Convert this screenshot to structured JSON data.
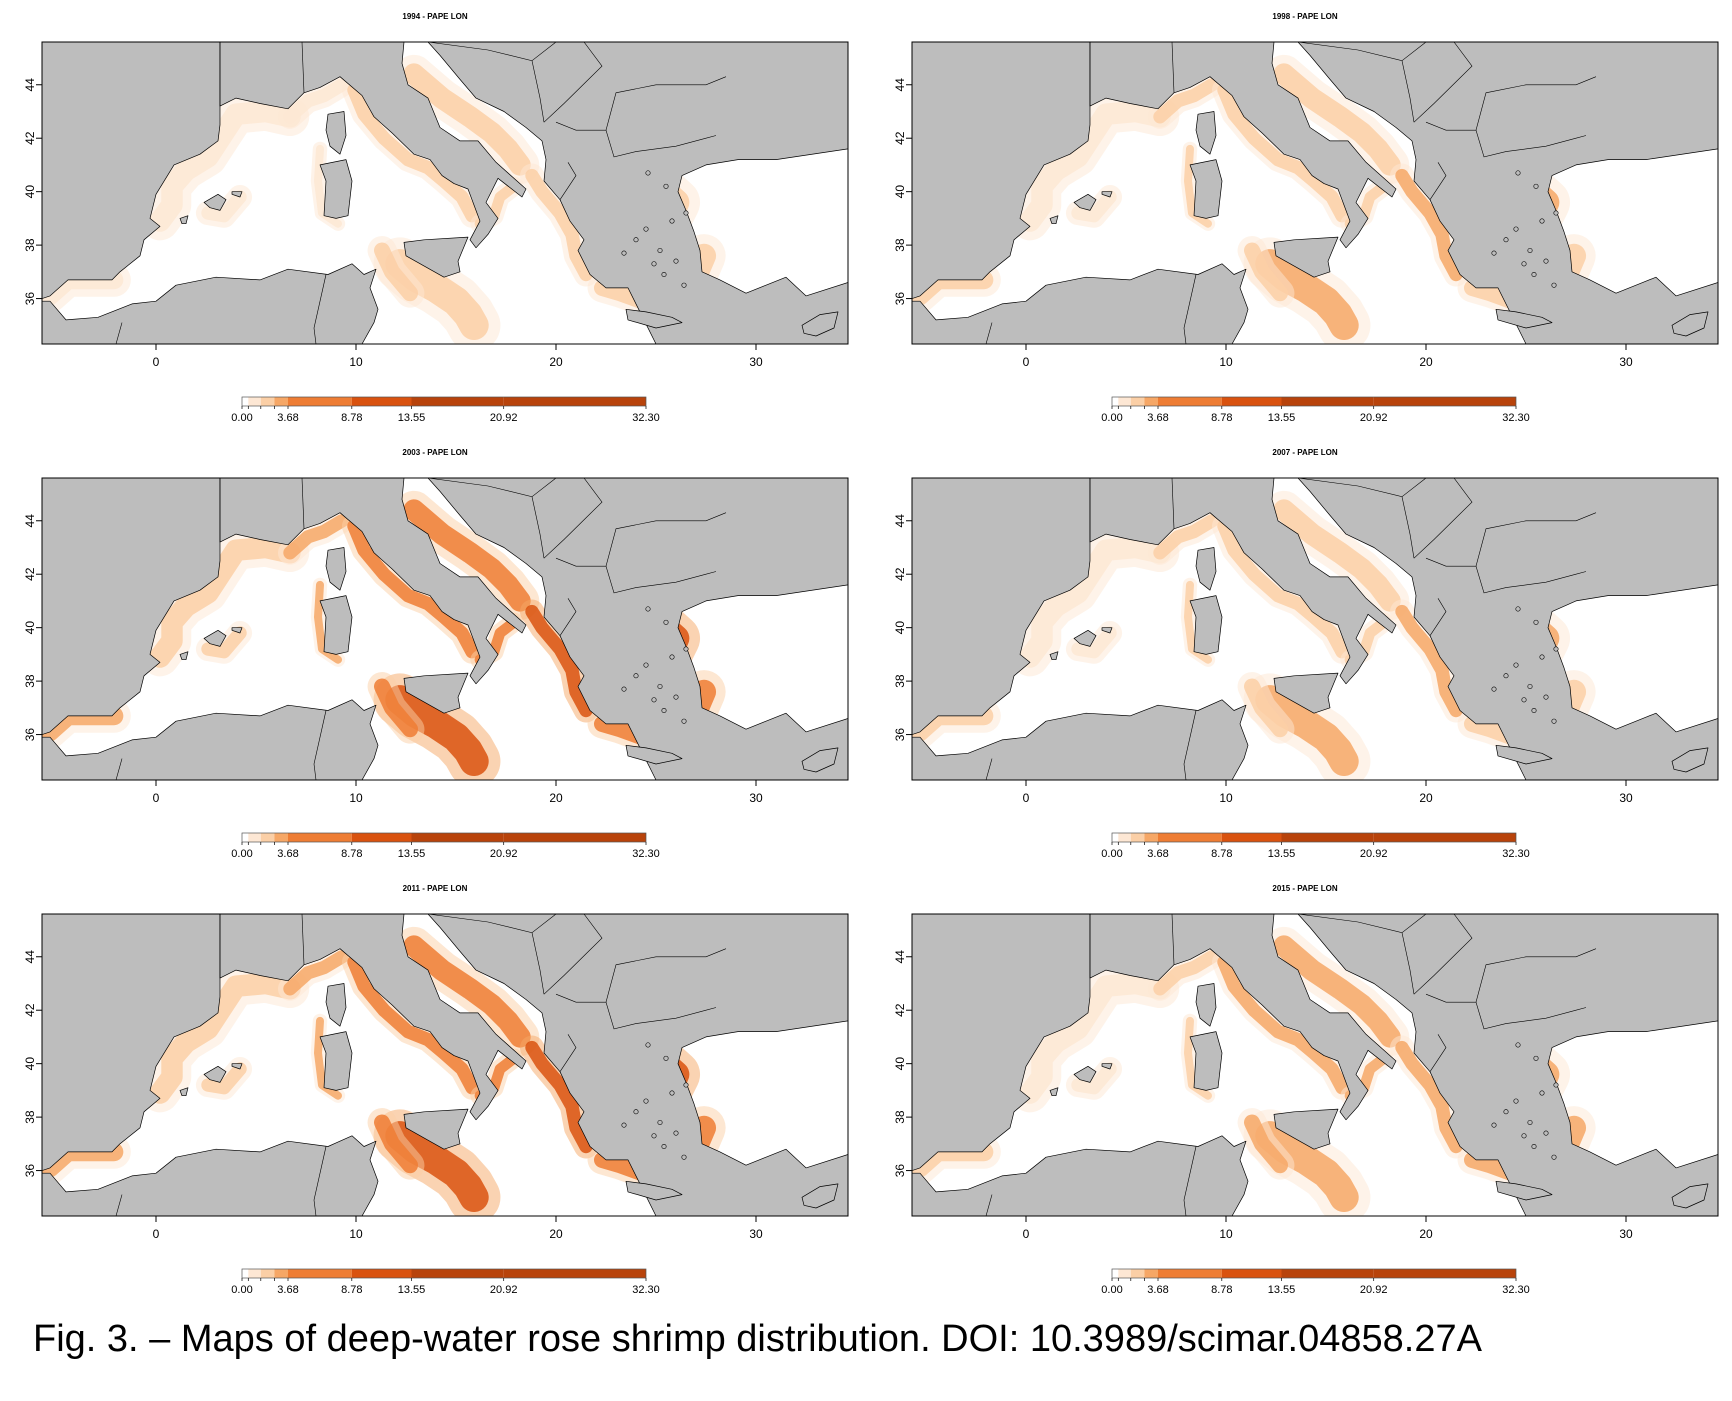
{
  "figure": {
    "caption": "Fig. 3. – Maps of deep-water rose shrimp distribution. DOI: 10.3989/scimar.04858.27A"
  },
  "colors": {
    "land": "#bdbdbd",
    "sea": "#ffffff",
    "scale": [
      "#ffffff",
      "#fde7d4",
      "#fbcfa6",
      "#f6a766",
      "#ee7d34",
      "#d9520f",
      "#b8430b"
    ]
  },
  "axes": {
    "x_ticks": [
      "0",
      "10",
      "20",
      "30"
    ],
    "y_ticks": [
      "44",
      "42",
      "40",
      "38",
      "36"
    ]
  },
  "legend": {
    "labels": [
      "0.00",
      "3.68",
      "8.78",
      "13.55",
      "20.92",
      "32.30"
    ],
    "breaks": [
      0.0,
      0.5,
      1.5,
      2.6,
      3.68,
      8.78,
      13.55,
      20.92,
      32.3
    ]
  },
  "panels": [
    {
      "title": "1994 - PAPE LON",
      "intensity": 0.55
    },
    {
      "title": "1998 - PAPE LON",
      "intensity": 0.8
    },
    {
      "title": "2003 - PAPE LON",
      "intensity": 0.9
    },
    {
      "title": "2007 - PAPE LON",
      "intensity": 0.8
    },
    {
      "title": "2011 - PAPE LON",
      "intensity": 0.95
    },
    {
      "title": "2015 - PAPE LON",
      "intensity": 0.85
    }
  ]
}
